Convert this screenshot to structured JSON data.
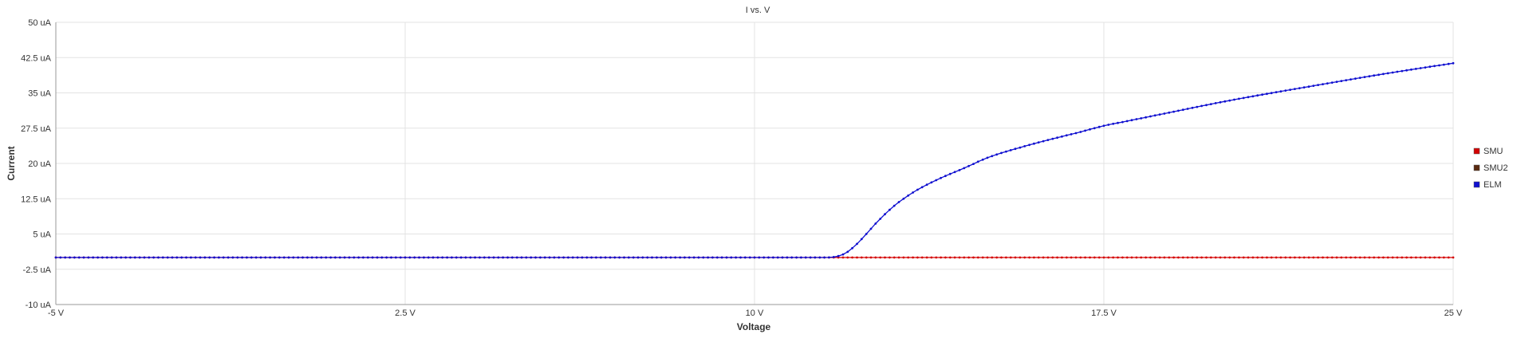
{
  "chart_data": {
    "type": "line",
    "title": "I vs. V",
    "xlabel": "Voltage",
    "ylabel": "Current",
    "x_unit": "V",
    "y_unit": "uA",
    "xlim": [
      -5,
      25
    ],
    "ylim": [
      -10,
      50
    ],
    "x_ticks": [
      -5,
      2.5,
      10,
      17.5,
      25
    ],
    "x_tick_labels": [
      "-5 V",
      "2.5 V",
      "10 V",
      "17.5 V",
      "25 V"
    ],
    "y_ticks": [
      50,
      42.5,
      35,
      27.5,
      20,
      12.5,
      5,
      -2.5,
      -10
    ],
    "y_tick_labels": [
      "50 uA",
      "42.5 uA",
      "35 uA",
      "27.5 uA",
      "20 uA",
      "12.5 uA",
      "5 uA",
      "-2.5 uA",
      "-10 uA"
    ],
    "grid": true,
    "legend_position": "right",
    "series": [
      {
        "name": "SMU",
        "color": "#d40000",
        "x": [
          -5,
          25
        ],
        "y": [
          0,
          0
        ]
      },
      {
        "name": "SMU2",
        "color": "#5a2a10",
        "x": [],
        "y": []
      },
      {
        "name": "ELM",
        "color": "#1010d0",
        "x": [
          -5,
          11.5,
          11.8,
          12.0,
          12.2,
          12.4,
          12.6,
          12.8,
          13.0,
          13.2,
          13.5,
          14.0,
          14.5,
          15.0,
          16.0,
          17.0,
          17.5,
          18.0,
          19.0,
          20.0,
          21.0,
          22.0,
          23.0,
          24.0,
          25.0
        ],
        "y": [
          0,
          0,
          0.3,
          1.2,
          2.9,
          5.0,
          7.2,
          9.2,
          11.0,
          12.5,
          14.4,
          16.9,
          19.0,
          21.2,
          24.2,
          26.7,
          28.0,
          29.0,
          31.0,
          33.0,
          34.8,
          36.5,
          38.2,
          39.8,
          41.3
        ]
      }
    ]
  }
}
